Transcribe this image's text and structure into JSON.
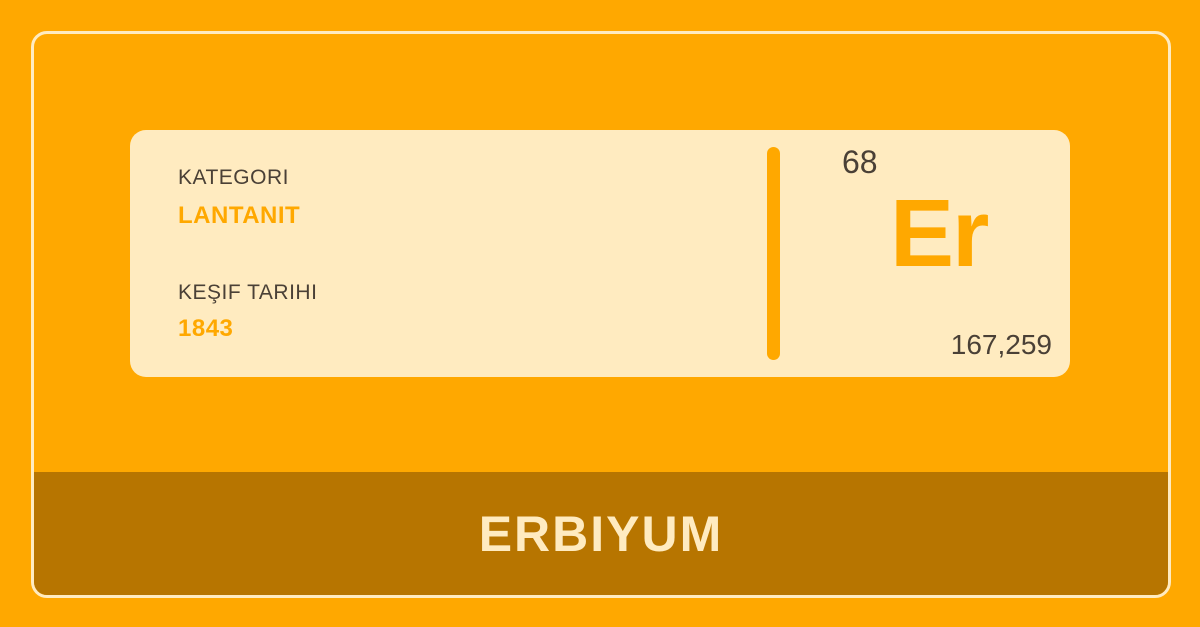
{
  "card": {
    "category_label": "KATEGORI",
    "category_value": "LANTANIT",
    "discovery_label": "KEŞIF TARIHI",
    "discovery_value": "1843",
    "atomic_number": "68",
    "symbol": "Er",
    "atomic_mass": "167,259"
  },
  "element_name": "ERBIYUM",
  "colors": {
    "background": "#FFA800",
    "card": "#FFEBC0",
    "name_bar": "#B77500",
    "accent": "#FFA800",
    "text": "#4a4036"
  }
}
